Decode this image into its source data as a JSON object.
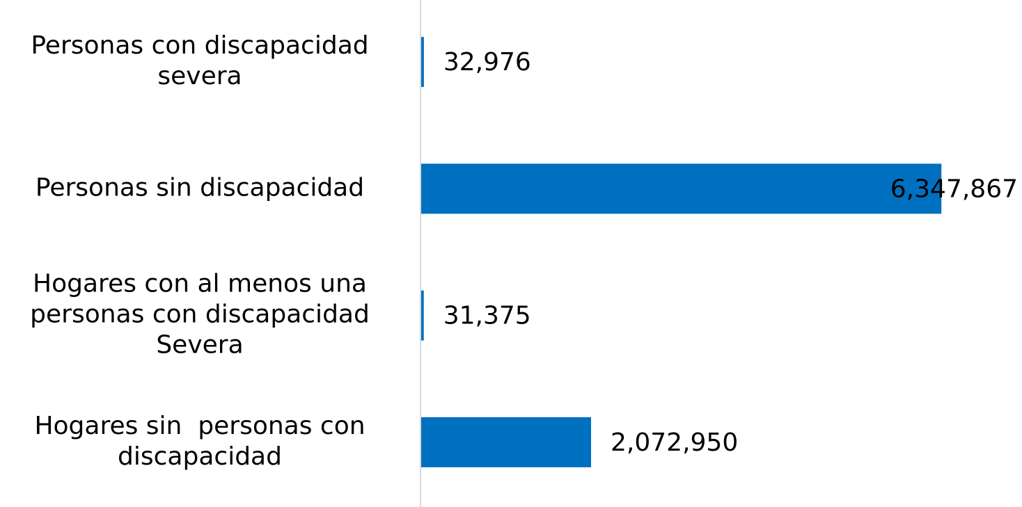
{
  "chart_data": {
    "type": "bar",
    "orientation": "horizontal",
    "categories": [
      "Personas con discapacidad\nsevera",
      "Personas sin discapacidad",
      "Hogares con al menos una\npersonas con discapacidad\nSevera",
      "Hogares sin  personas con\ndiscapacidad"
    ],
    "values": [
      32976,
      6347867,
      31375,
      2072950
    ],
    "value_labels": [
      "32,976",
      "6,347,867",
      "31,375",
      "2,072,950"
    ],
    "color": "#0070c0",
    "xlim": [
      0,
      7000000
    ]
  }
}
